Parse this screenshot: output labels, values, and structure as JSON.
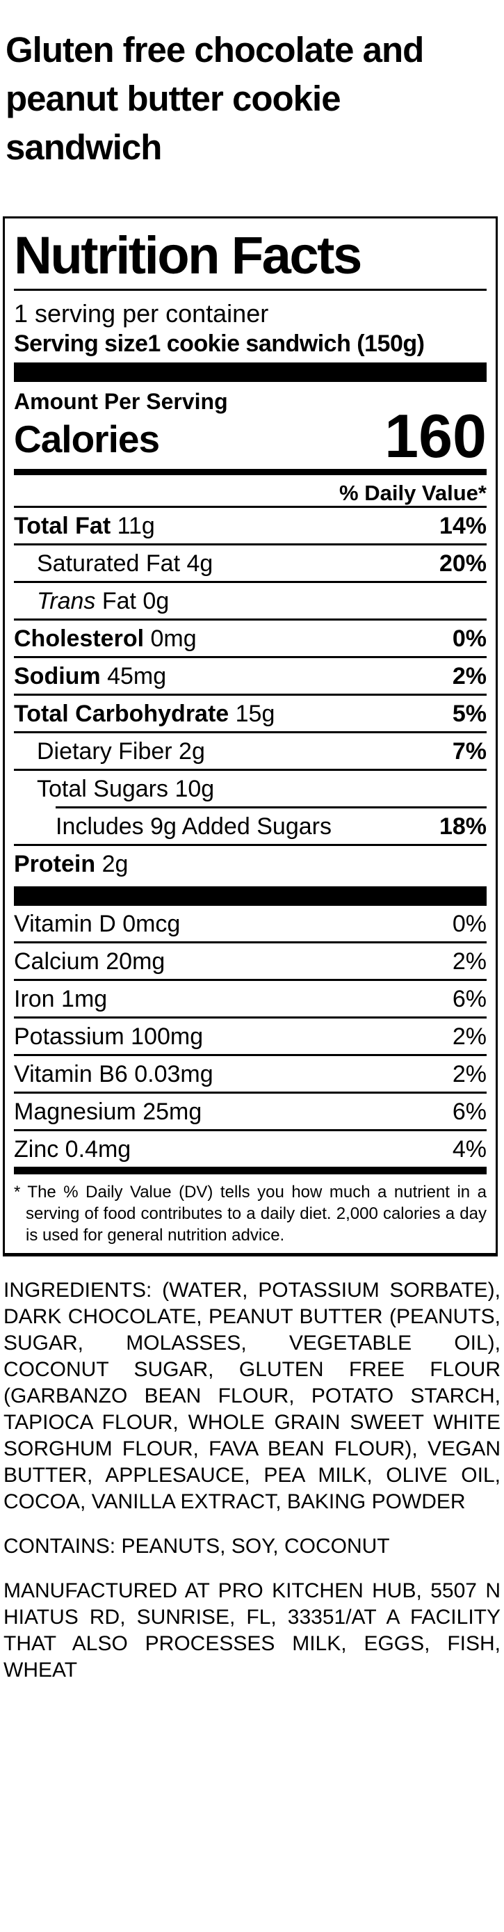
{
  "product": {
    "title_lines": [
      "Gluten free chocolate and",
      "peanut butter cookie",
      "sandwich"
    ]
  },
  "label": {
    "heading": "Nutrition Facts",
    "servings_per_container": "1 serving per container",
    "serving_size_label": "Serving size",
    "serving_size_value": "1 cookie sandwich (150g)",
    "amount_per_serving": "Amount Per Serving",
    "calories_label": "Calories",
    "calories_value": "160",
    "daily_value_header": "% Daily Value*",
    "nutrients": [
      {
        "bold": "Total Fat",
        "text": " 11g",
        "dv": "14%"
      },
      {
        "text": "Saturated Fat 4g",
        "dv": "20%"
      },
      {
        "italic": "Trans",
        "text": " Fat 0g",
        "dv": ""
      },
      {
        "bold": "Cholesterol",
        "text": " 0mg",
        "dv": "0%"
      },
      {
        "bold": "Sodium",
        "text": " 45mg",
        "dv": "2%"
      },
      {
        "bold": "Total Carbohydrate",
        "text": " 15g",
        "dv": "5%"
      },
      {
        "text": "Dietary Fiber 2g",
        "dv": "7%"
      },
      {
        "text": "Total Sugars 10g",
        "dv": ""
      },
      {
        "text": "Includes 9g Added Sugars",
        "dv": "18%"
      },
      {
        "bold": "Protein",
        "text": " 2g",
        "dv": ""
      }
    ],
    "vitamins": [
      {
        "text": "Vitamin D 0mcg",
        "dv": "0%"
      },
      {
        "text": "Calcium 20mg",
        "dv": "2%"
      },
      {
        "text": "Iron 1mg",
        "dv": "6%"
      },
      {
        "text": "Potassium 100mg",
        "dv": "2%"
      },
      {
        "text": "Vitamin B6 0.03mg",
        "dv": "2%"
      },
      {
        "text": "Magnesium 25mg",
        "dv": "6%"
      },
      {
        "text": "Zinc 0.4mg",
        "dv": "4%"
      }
    ],
    "footnote_marker": "*",
    "footnote": "The % Daily Value (DV) tells you how much a nutrient in a serving of food contributes to a daily diet. 2,000 calories a day is used for general nutrition advice."
  },
  "ingredients_text": "INGREDIENTS: (WATER, POTASSIUM SORBATE), DARK CHOCOLATE, PEANUT BUTTER (PEANUTS, SUGAR, MOLASSES, VEGETABLE OIL), COCONUT SUGAR, GLUTEN FREE FLOUR (GARBANZO BEAN FLOUR, POTATO STARCH, TAPIOCA FLOUR, WHOLE GRAIN SWEET WHITE SORGHUM FLOUR, FAVA BEAN FLOUR), VEGAN BUTTER, APPLESAUCE, PEA MILK, OLIVE OIL, COCOA, VANILLA EXTRACT, BAKING POWDER",
  "contains_text": "CONTAINS: PEANUTS, SOY, COCONUT",
  "manufactured_text": "MANUFACTURED AT PRO KITCHEN HUB, 5507 N HIATUS RD, SUNRISE, FL, 33351/AT A FACILITY THAT ALSO PROCESSES MILK, EGGS, FISH, WHEAT",
  "colors": {
    "text": "#000000",
    "background": "#ffffff"
  }
}
